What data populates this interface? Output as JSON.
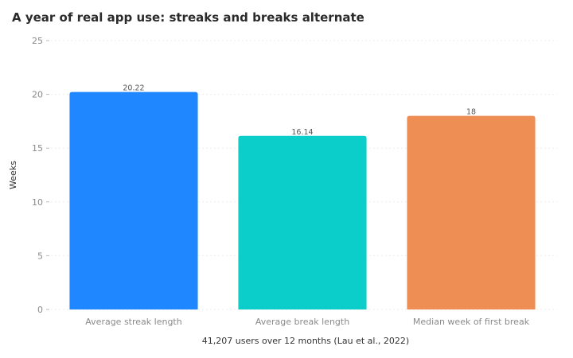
{
  "chart_data": {
    "type": "bar",
    "title": "A year of real app use: streaks and breaks alternate",
    "xlabel": "41,207 users over 12 months (Lau et al., 2022)",
    "ylabel": "Weeks",
    "ylim": [
      0,
      25
    ],
    "yticks": [
      0,
      5,
      10,
      15,
      20,
      25
    ],
    "categories": [
      "Average streak length",
      "Average break length",
      "Median week of first break"
    ],
    "values": [
      20.22,
      16.14,
      18
    ],
    "data_labels": [
      "20.22",
      "16.14",
      "18"
    ],
    "colors": [
      "#1f87ff",
      "#0bcdc9",
      "#ee8e55"
    ],
    "grid": true,
    "legend": "none"
  }
}
